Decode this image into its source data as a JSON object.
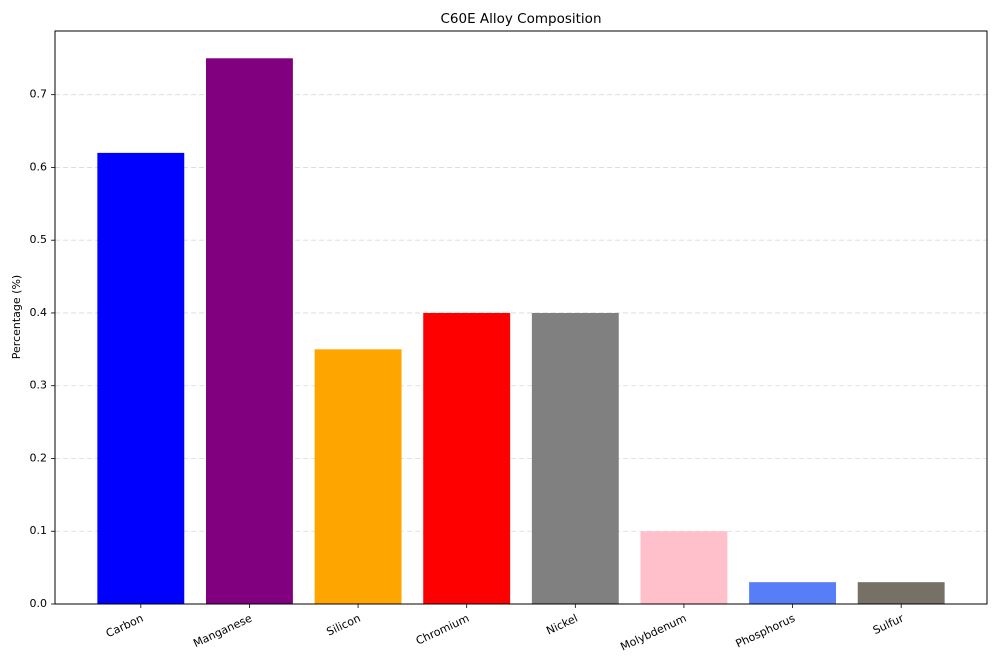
{
  "chart_data": {
    "type": "bar",
    "title": "C60E Alloy Composition",
    "y_label": "Percentage (%)",
    "categories": [
      "Carbon",
      "Manganese",
      "Silicon",
      "Chromium",
      "Nickel",
      "Molybdenum",
      "Phosphorus",
      "Sulfur"
    ],
    "values": [
      0.62,
      0.75,
      0.35,
      0.4,
      0.4,
      0.1,
      0.03,
      0.03
    ],
    "colors": [
      "#0000ff",
      "#800080",
      "#ffa500",
      "#ff0000",
      "#808080",
      "#ffc0cb",
      "#587ef7",
      "#767066"
    ],
    "ylim": [
      0,
      0.7875
    ],
    "yticks": [
      {
        "value": 0,
        "label": "0.0"
      },
      0.1,
      0.2,
      0.3,
      0.4,
      0.5,
      0.6,
      0.7
    ],
    "grid": true
  }
}
